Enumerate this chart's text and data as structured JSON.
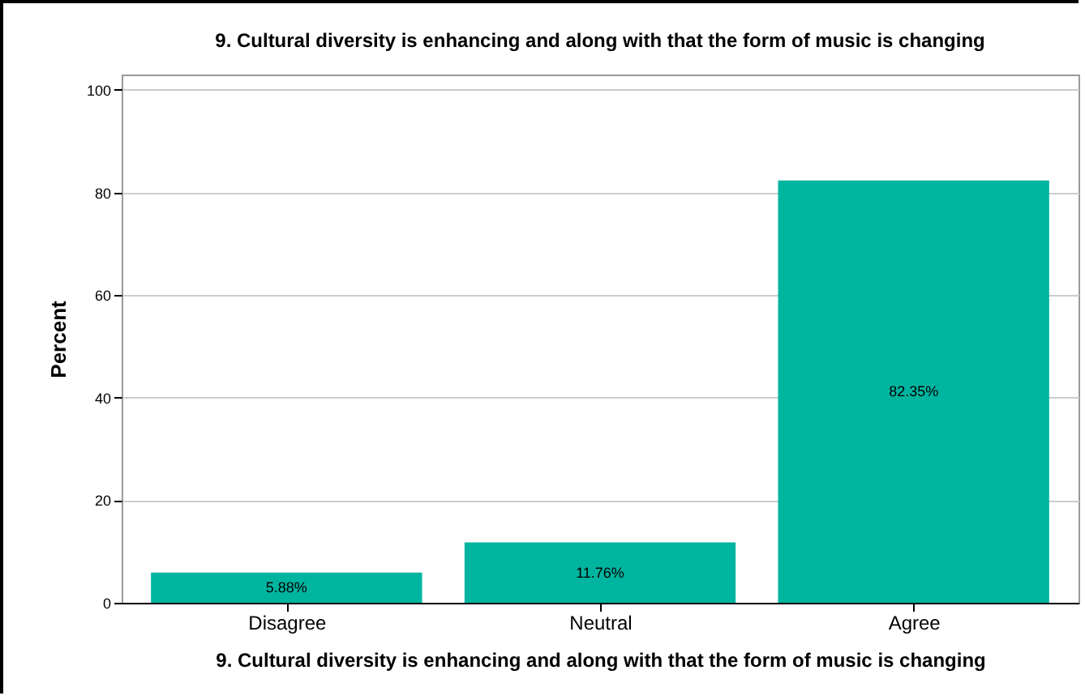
{
  "chart_data": {
    "type": "bar",
    "title": "9. Cultural diversity is enhancing and along with that the form of music is changing",
    "xlabel": "9. Cultural diversity is enhancing and along with that the form of music is changing",
    "ylabel": "Percent",
    "categories": [
      "Disagree",
      "Neutral",
      "Agree"
    ],
    "values": [
      5.88,
      11.76,
      82.35
    ],
    "color": "#00b5a0",
    "value_labels": [
      "5.88%",
      "11.76%",
      "82.35%"
    ],
    "ylim": [
      0,
      103
    ],
    "yticks": [
      0,
      20,
      40,
      60,
      80,
      100
    ],
    "grid": "y"
  }
}
